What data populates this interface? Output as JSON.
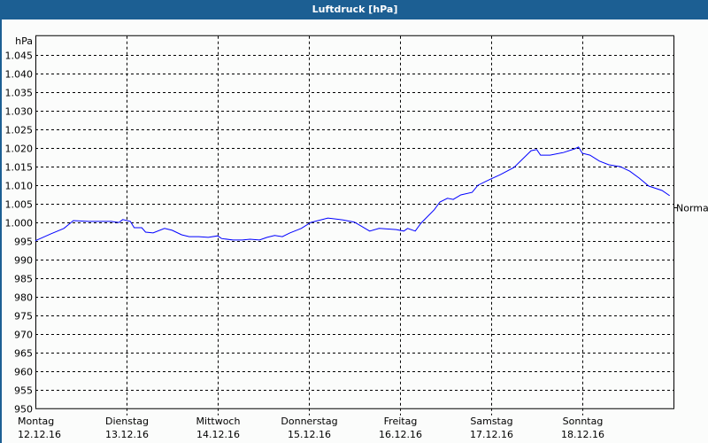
{
  "title": "Luftdruck [hPa]",
  "colors": {
    "titlebar": "#1c5f93",
    "line": "#0000ff",
    "grid": "#000000"
  },
  "chart_data": {
    "type": "line",
    "title": "Luftdruck [hPa]",
    "ylabel": "hPa",
    "ylim": [
      950,
      1050
    ],
    "yticks": [
      950,
      955,
      960,
      965,
      970,
      975,
      980,
      985,
      990,
      995,
      1000,
      1005,
      1010,
      1015,
      1020,
      1025,
      1030,
      1035,
      1040,
      1045
    ],
    "ytick_labels": [
      "950",
      "955",
      "960",
      "965",
      "970",
      "975",
      "980",
      "985",
      "990",
      "995",
      "1.000",
      "1.005",
      "1.010",
      "1.015",
      "1.020",
      "1.025",
      "1.030",
      "1.035",
      "1.040",
      "1.045"
    ],
    "xlim": [
      "12.12.16 00:00",
      "19.12.16 00:00"
    ],
    "xticks": [
      {
        "day": "Montag",
        "date": "12.12.16"
      },
      {
        "day": "Dienstag",
        "date": "13.12.16"
      },
      {
        "day": "Mittwoch",
        "date": "14.12.16"
      },
      {
        "day": "Donnerstag",
        "date": "15.12.16"
      },
      {
        "day": "Freitag",
        "date": "16.12.16"
      },
      {
        "day": "Samstag",
        "date": "17.12.16"
      },
      {
        "day": "Sonntag",
        "date": "18.12.16"
      }
    ],
    "grid": true,
    "reference_line": {
      "label": "Normal",
      "value": 1004
    },
    "series": [
      {
        "points": [
          [
            "12.12.16 00:00",
            995.0
          ],
          [
            "12.12.16 04:00",
            996.8
          ],
          [
            "12.12.16 07:30",
            998.3
          ],
          [
            "12.12.16 10:00",
            1000.4
          ],
          [
            "12.12.16 14:00",
            1000.2
          ],
          [
            "12.12.16 20:00",
            1000.2
          ],
          [
            "12.12.16 22:00",
            999.9
          ],
          [
            "12.12.16 23:00",
            1000.7
          ],
          [
            "13.12.16 01:00",
            1000.2
          ],
          [
            "13.12.16 02:00",
            998.5
          ],
          [
            "13.12.16 04:00",
            998.5
          ],
          [
            "13.12.16 05:00",
            997.3
          ],
          [
            "13.12.16 07:00",
            997.1
          ],
          [
            "13.12.16 10:00",
            998.3
          ],
          [
            "13.12.16 12:00",
            997.8
          ],
          [
            "13.12.16 14:30",
            996.6
          ],
          [
            "13.12.16 16:30",
            996.1
          ],
          [
            "13.12.16 19:00",
            996.1
          ],
          [
            "13.12.16 21:30",
            995.9
          ],
          [
            "14.12.16 00:00",
            996.3
          ],
          [
            "14.12.16 01:00",
            995.6
          ],
          [
            "14.12.16 04:00",
            995.2
          ],
          [
            "14.12.16 06:30",
            995.2
          ],
          [
            "14.12.16 08:30",
            995.4
          ],
          [
            "14.12.16 11:00",
            995.2
          ],
          [
            "14.12.16 13:00",
            995.9
          ],
          [
            "14.12.16 15:00",
            996.4
          ],
          [
            "14.12.16 17:00",
            996.1
          ],
          [
            "14.12.16 19:00",
            997.1
          ],
          [
            "14.12.16 22:00",
            998.3
          ],
          [
            "15.12.16 00:30",
            999.9
          ],
          [
            "15.12.16 05:00",
            1001.1
          ],
          [
            "15.12.16 09:00",
            1000.6
          ],
          [
            "15.12.16 12:00",
            1000.0
          ],
          [
            "15.12.16 16:00",
            997.6
          ],
          [
            "15.12.16 18:30",
            998.3
          ],
          [
            "15.12.16 23:00",
            998.0
          ],
          [
            "16.12.16 01:00",
            997.6
          ],
          [
            "16.12.16 02:00",
            998.3
          ],
          [
            "16.12.16 04:00",
            997.6
          ],
          [
            "16.12.16 05:30",
            999.7
          ],
          [
            "16.12.16 09:00",
            1003.3
          ],
          [
            "16.12.16 10:30",
            1005.4
          ],
          [
            "16.12.16 12:30",
            1006.4
          ],
          [
            "16.12.16 14:00",
            1006.1
          ],
          [
            "16.12.16 16:00",
            1007.3
          ],
          [
            "16.12.16 19:00",
            1008.0
          ],
          [
            "16.12.16 20:30",
            1009.9
          ],
          [
            "16.12.16 23:30",
            1011.4
          ],
          [
            "17.12.16 02:30",
            1012.8
          ],
          [
            "17.12.16 06:00",
            1014.7
          ],
          [
            "17.12.16 10:30",
            1019.2
          ],
          [
            "17.12.16 12:00",
            1019.5
          ],
          [
            "17.12.16 13:00",
            1018.0
          ],
          [
            "17.12.16 15:30",
            1018.0
          ],
          [
            "17.12.16 19:00",
            1018.7
          ],
          [
            "17.12.16 22:00",
            1019.7
          ],
          [
            "17.12.16 23:00",
            1020.2
          ],
          [
            "18.12.16 00:00",
            1018.5
          ],
          [
            "18.12.16 02:00",
            1018.0
          ],
          [
            "18.12.16 04:30",
            1016.4
          ],
          [
            "18.12.16 07:00",
            1015.4
          ],
          [
            "18.12.16 10:00",
            1014.9
          ],
          [
            "18.12.16 12:30",
            1013.7
          ],
          [
            "18.12.16 15:00",
            1011.8
          ],
          [
            "18.12.16 17:30",
            1009.7
          ],
          [
            "18.12.16 21:00",
            1008.5
          ],
          [
            "18.12.16 23:00",
            1007.1
          ]
        ]
      }
    ]
  }
}
